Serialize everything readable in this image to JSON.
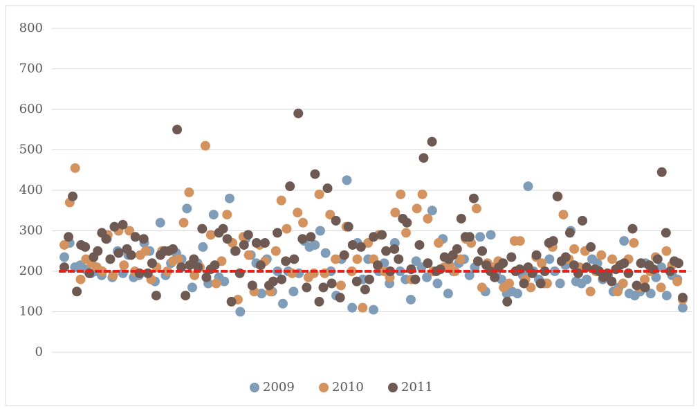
{
  "chart_data": {
    "type": "scatter",
    "ylim": [
      0,
      800
    ],
    "yticks": [
      0,
      100,
      200,
      300,
      400,
      500,
      600,
      700,
      800
    ],
    "grid": true,
    "reference_line": {
      "value": 200,
      "color": "#e8201a"
    },
    "legend": "bottom",
    "series": [
      {
        "name": "2009",
        "color": "#7f9db9",
        "values": [
          235,
          270,
          210,
          215,
          205,
          195,
          200,
          190,
          280,
          185,
          250,
          195,
          240,
          185,
          190,
          270,
          250,
          175,
          320,
          190,
          220,
          245,
          230,
          355,
          160,
          220,
          260,
          170,
          340,
          185,
          175,
          380,
          250,
          100,
          280,
          240,
          220,
          145,
          230,
          150,
          200,
          120,
          200,
          150,
          195,
          275,
          260,
          265,
          300,
          245,
          200,
          140,
          230,
          425,
          110,
          270,
          180,
          230,
          105,
          200,
          220,
          170,
          270,
          200,
          180,
          130,
          225,
          210,
          185,
          350,
          170,
          280,
          145,
          200,
          220,
          230,
          190,
          210,
          285,
          150,
          290,
          195,
          180,
          145,
          150,
          145,
          190,
          410,
          200,
          180,
          170,
          230,
          200,
          170,
          215,
          300,
          175,
          170,
          180,
          230,
          220,
          180,
          190,
          150,
          160,
          275,
          145,
          140,
          150,
          220,
          145,
          185,
          210,
          140,
          190,
          180,
          110
        ]
      },
      {
        "name": "2010",
        "color": "#d4925f",
        "values": [
          265,
          370,
          455,
          180,
          230,
          220,
          210,
          200,
          290,
          190,
          300,
          215,
          300,
          200,
          240,
          250,
          180,
          210,
          250,
          200,
          225,
          230,
          320,
          395,
          190,
          210,
          510,
          290,
          170,
          225,
          340,
          270,
          130,
          285,
          240,
          150,
          265,
          225,
          150,
          250,
          375,
          305,
          195,
          345,
          320,
          185,
          195,
          390,
          195,
          340,
          230,
          165,
          310,
          200,
          230,
          110,
          270,
          230,
          290,
          200,
          185,
          345,
          390,
          295,
          180,
          355,
          390,
          330,
          200,
          270,
          210,
          215,
          200,
          230,
          280,
          270,
          355,
          160,
          220,
          210,
          225,
          160,
          170,
          275,
          275,
          180,
          160,
          235,
          220,
          170,
          260,
          385,
          340,
          230,
          255,
          210,
          250,
          150,
          200,
          240,
          190,
          230,
          150,
          170,
          230,
          270,
          160,
          180,
          200,
          235,
          160,
          250,
          215,
          175,
          130
        ]
      },
      {
        "name": "2011",
        "color": "#6e5a52",
        "values": [
          210,
          285,
          385,
          150,
          265,
          260,
          195,
          235,
          250,
          295,
          280,
          230,
          310,
          245,
          315,
          255,
          240,
          285,
          195,
          280,
          195,
          220,
          140,
          240,
          250,
          250,
          255,
          550,
          210,
          140,
          215,
          230,
          210,
          305,
          185,
          205,
          215,
          295,
          305,
          280,
          125,
          250,
          195,
          265,
          290,
          165,
          270,
          215,
          270,
          165,
          175,
          295,
          180,
          225,
          410,
          230,
          590,
          280,
          160,
          285,
          440,
          125,
          160,
          405,
          170,
          325,
          135,
          240,
          310,
          265,
          175,
          260,
          155,
          180,
          285,
          215,
          290,
          250,
          200,
          255,
          230,
          330,
          320,
          205,
          180,
          265,
          480,
          220,
          520,
          200,
          205,
          235,
          230,
          240,
          255,
          330,
          285,
          285,
          380,
          225,
          250,
          215,
          200,
          185,
          210,
          220,
          125,
          235,
          200,
          205,
          170,
          210,
          195,
          240,
          170,
          200,
          270,
          275,
          385,
          225,
          235,
          295,
          215,
          195,
          325,
          210,
          260,
          205,
          200,
          185,
          195,
          175,
          205,
          215,
          220,
          195,
          305,
          165,
          220,
          160,
          215,
          205,
          230,
          445,
          295,
          200,
          225,
          220,
          135
        ]
      }
    ]
  }
}
